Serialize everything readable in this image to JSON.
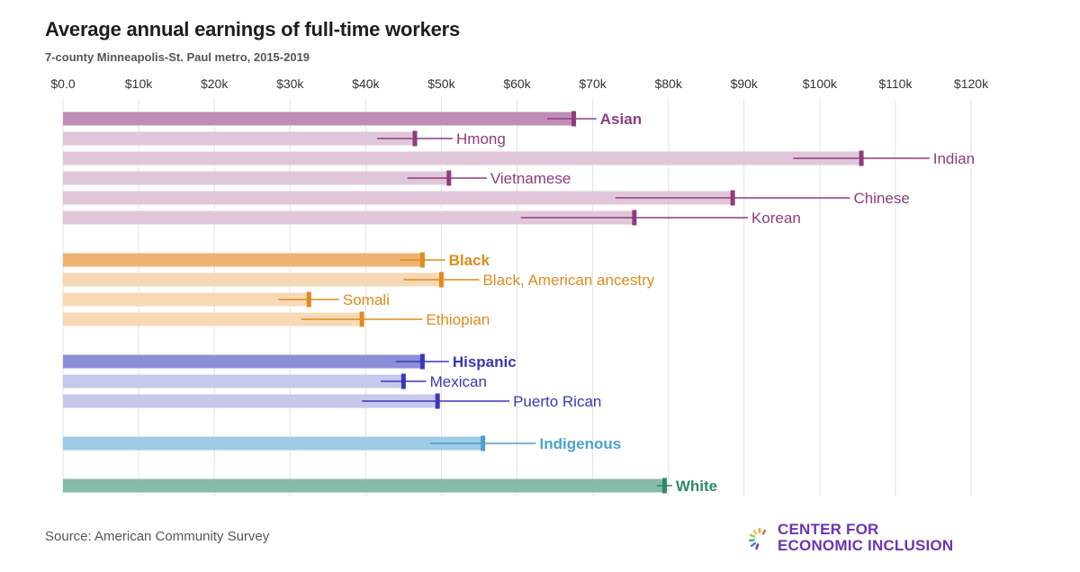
{
  "title": "Average annual earnings of full-time workers",
  "subtitle": "7-county Minneapolis-St. Paul metro, 2015-2019",
  "source": "Source: American Community Survey",
  "logo": {
    "line1": "CENTER FOR",
    "line2": "ECONOMIC INCLUSION"
  },
  "chart_data": {
    "type": "bar",
    "orientation": "horizontal",
    "xlim": [
      0,
      120000
    ],
    "x_ticks": [
      "$0.0",
      "$10k",
      "$20k",
      "$30k",
      "$40k",
      "$50k",
      "$60k",
      "$70k",
      "$80k",
      "$90k",
      "$100k",
      "$110k",
      "$120k"
    ],
    "grid": true,
    "error_bars": true,
    "bars": [
      {
        "label": "Asian",
        "value": 67500,
        "low": 64000,
        "high": 70500,
        "group": "asian",
        "primary": true
      },
      {
        "label": "Hmong",
        "value": 46500,
        "low": 41500,
        "high": 51500,
        "group": "asian",
        "primary": false
      },
      {
        "label": "Indian",
        "value": 105500,
        "low": 96500,
        "high": 114500,
        "group": "asian",
        "primary": false
      },
      {
        "label": "Vietnamese",
        "value": 51000,
        "low": 45500,
        "high": 56000,
        "group": "asian",
        "primary": false
      },
      {
        "label": "Chinese",
        "value": 88500,
        "low": 73000,
        "high": 104000,
        "group": "asian",
        "primary": false
      },
      {
        "label": "Korean",
        "value": 75500,
        "low": 60500,
        "high": 90500,
        "group": "asian",
        "primary": false
      },
      {
        "label": "Black",
        "value": 47500,
        "low": 44500,
        "high": 50500,
        "group": "black",
        "primary": true
      },
      {
        "label": "Black, American ancestry",
        "value": 50000,
        "low": 45000,
        "high": 55000,
        "group": "black",
        "primary": false
      },
      {
        "label": "Somali",
        "value": 32500,
        "low": 28500,
        "high": 36500,
        "group": "black",
        "primary": false
      },
      {
        "label": "Ethiopian",
        "value": 39500,
        "low": 31500,
        "high": 47500,
        "group": "black",
        "primary": false
      },
      {
        "label": "Hispanic",
        "value": 47500,
        "low": 44000,
        "high": 51000,
        "group": "hispanic",
        "primary": true
      },
      {
        "label": "Mexican",
        "value": 45000,
        "low": 42000,
        "high": 48000,
        "group": "hispanic",
        "primary": false
      },
      {
        "label": "Puerto Rican",
        "value": 49500,
        "low": 39500,
        "high": 59000,
        "group": "hispanic",
        "primary": false
      },
      {
        "label": "Indigenous",
        "value": 55500,
        "low": 48500,
        "high": 62500,
        "group": "indigenous",
        "primary": true
      },
      {
        "label": "White",
        "value": 79500,
        "low": 78500,
        "high": 80500,
        "group": "white",
        "primary": true
      }
    ],
    "colors": {
      "asian": {
        "primary": "#c08db6",
        "secondary": "#e0c6d9",
        "mark": "#8e3c7d"
      },
      "black": {
        "primary": "#efb371",
        "secondary": "#f8d9b6",
        "mark": "#e08a1e"
      },
      "hispanic": {
        "primary": "#8b8fd8",
        "secondary": "#c6c8ec",
        "mark": "#3a37b8"
      },
      "indigenous": {
        "primary": "#9fcbe5",
        "secondary": "#9fcbe5",
        "mark": "#4ba0cf"
      },
      "white": {
        "primary": "#86bba5",
        "secondary": "#86bba5",
        "mark": "#2f8a64"
      }
    }
  }
}
